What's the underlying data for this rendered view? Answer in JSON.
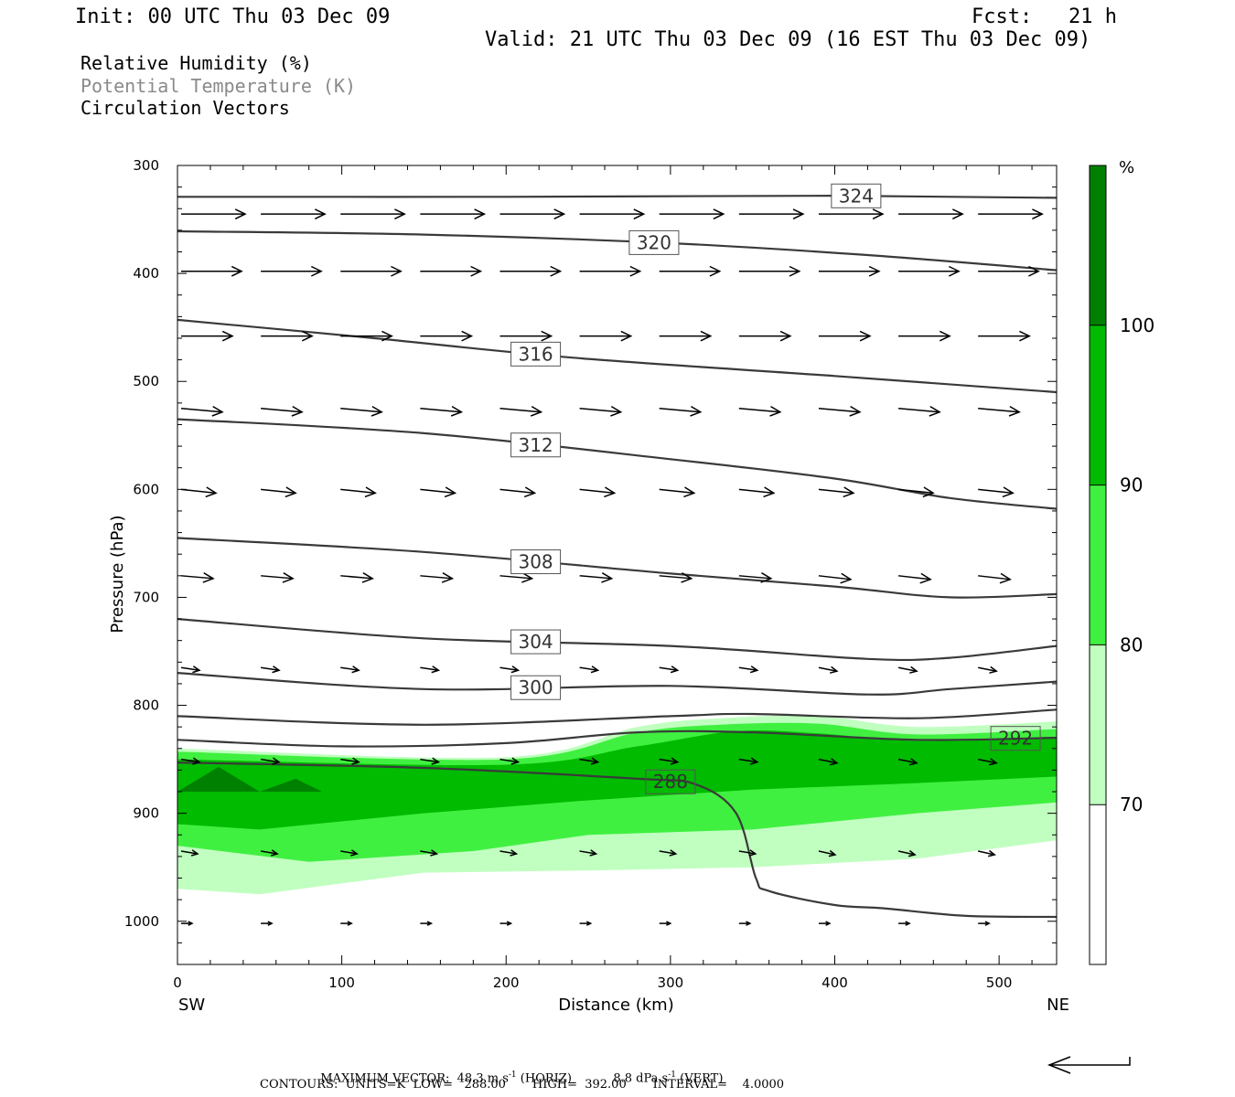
{
  "header": {
    "init": "Init: 00 UTC Thu 03 Dec 09",
    "fcst": "Fcst:   21 h",
    "valid": "Valid: 21 UTC Thu 03 Dec 09 (16 EST Thu 03 Dec 09)"
  },
  "fields": {
    "line1": "Relative Humidity (%)",
    "line2": "Potential Temperature (K)",
    "line3": "Circulation Vectors"
  },
  "footer": {
    "max_vector_label": "MAXIMUM VECTOR:",
    "max_vector_horiz": "48.3 m s",
    "horiz_sup": "-1",
    "horiz_tag": "(HORIZ)",
    "max_vector_vert": "8.8 dPa s",
    "vert_sup": "-1",
    "vert_tag": "(VERT)",
    "contours": "CONTOURS:  UNITS=K  LOW=   288.00       HIGH=  392.00       INTERVAL=    4.0000"
  },
  "colors": {
    "rh_70_80": "#c0ffc0",
    "rh_80_90": "#40f040",
    "rh_90_100": "#00bb00",
    "rh_100": "#008000",
    "contour": "#3a3a3a",
    "gray_text": "#8a8a8a"
  },
  "chart_data": {
    "type": "cross-section",
    "xlabel": "Distance (km)",
    "ylabel": "Pressure (hPa)",
    "xlim": [
      0,
      535
    ],
    "ylim": [
      1040,
      300
    ],
    "x_ticks": [
      "0",
      "100",
      "200",
      "300",
      "400",
      "500"
    ],
    "y_ticks": [
      "300",
      "400",
      "500",
      "600",
      "700",
      "800",
      "900",
      "1000"
    ],
    "x_end_labels": {
      "left": "SW",
      "right": "NE"
    },
    "colorbar": {
      "unit": "%",
      "levels": [
        "70",
        "80",
        "90",
        "100"
      ]
    },
    "theta_contours": [
      {
        "value": 324,
        "label": "324",
        "label_x": 413,
        "points": [
          [
            0,
            329
          ],
          [
            200,
            329
          ],
          [
            400,
            328
          ],
          [
            535,
            330
          ]
        ]
      },
      {
        "value": 320,
        "label": "320",
        "label_x": 290,
        "points": [
          [
            0,
            361
          ],
          [
            150,
            364
          ],
          [
            300,
            372
          ],
          [
            420,
            383
          ],
          [
            535,
            397
          ]
        ]
      },
      {
        "value": 316,
        "label": "316",
        "label_x": 218,
        "points": [
          [
            0,
            443
          ],
          [
            120,
            460
          ],
          [
            240,
            478
          ],
          [
            400,
            495
          ],
          [
            535,
            510
          ]
        ]
      },
      {
        "value": 312,
        "label": "312",
        "label_x": 218,
        "points": [
          [
            0,
            535
          ],
          [
            150,
            548
          ],
          [
            300,
            572
          ],
          [
            400,
            590
          ],
          [
            470,
            608
          ],
          [
            535,
            618
          ]
        ]
      },
      {
        "value": 308,
        "label": "308",
        "label_x": 218,
        "points": [
          [
            0,
            645
          ],
          [
            150,
            658
          ],
          [
            300,
            678
          ],
          [
            400,
            690
          ],
          [
            470,
            700
          ],
          [
            535,
            697
          ]
        ]
      },
      {
        "value": 304,
        "label": "304",
        "label_x": 218,
        "points": [
          [
            0,
            720
          ],
          [
            150,
            738
          ],
          [
            300,
            745
          ],
          [
            420,
            757
          ],
          [
            470,
            756
          ],
          [
            535,
            745
          ]
        ]
      },
      {
        "value": 300,
        "label": "300",
        "label_x": 218,
        "points": [
          [
            0,
            770
          ],
          [
            150,
            785
          ],
          [
            300,
            782
          ],
          [
            420,
            790
          ],
          [
            470,
            785
          ],
          [
            535,
            778
          ]
        ]
      },
      {
        "value": 296,
        "label": "",
        "label_x": 0,
        "points": [
          [
            0,
            810
          ],
          [
            150,
            818
          ],
          [
            300,
            810
          ],
          [
            350,
            808
          ],
          [
            450,
            812
          ],
          [
            535,
            804
          ]
        ]
      },
      {
        "value": 292,
        "label": "292",
        "label_x": 510,
        "points": [
          [
            0,
            832
          ],
          [
            100,
            838
          ],
          [
            200,
            835
          ],
          [
            280,
            825
          ],
          [
            350,
            825
          ],
          [
            450,
            832
          ],
          [
            535,
            830
          ]
        ]
      },
      {
        "value": 288,
        "label": "288",
        "label_x": 300,
        "points": [
          [
            0,
            853
          ],
          [
            150,
            858
          ],
          [
            280,
            868
          ],
          [
            315,
            873
          ],
          [
            340,
            900
          ],
          [
            352,
            960
          ],
          [
            360,
            972
          ],
          [
            400,
            985
          ],
          [
            430,
            988
          ],
          [
            480,
            995
          ],
          [
            535,
            996
          ]
        ]
      }
    ],
    "rh_layers": [
      {
        "range": "70-80",
        "top": [
          [
            0,
            840
          ],
          [
            200,
            848
          ],
          [
            280,
            820
          ],
          [
            330,
            812
          ],
          [
            390,
            810
          ],
          [
            450,
            820
          ],
          [
            535,
            815
          ]
        ],
        "bottom": [
          [
            0,
            970
          ],
          [
            50,
            975
          ],
          [
            150,
            955
          ],
          [
            250,
            953
          ],
          [
            350,
            950
          ],
          [
            450,
            942
          ],
          [
            535,
            925
          ]
        ]
      },
      {
        "range": "80-90",
        "top": [
          [
            0,
            843
          ],
          [
            200,
            850
          ],
          [
            280,
            825
          ],
          [
            330,
            818
          ],
          [
            390,
            817
          ],
          [
            450,
            827
          ],
          [
            535,
            822
          ]
        ],
        "bottom": [
          [
            0,
            930
          ],
          [
            80,
            945
          ],
          [
            180,
            935
          ],
          [
            250,
            920
          ],
          [
            350,
            915
          ],
          [
            450,
            900
          ],
          [
            535,
            890
          ]
        ]
      },
      {
        "range": "90-100",
        "top": [
          [
            0,
            850
          ],
          [
            200,
            855
          ],
          [
            280,
            838
          ],
          [
            340,
            824
          ],
          [
            390,
            826
          ],
          [
            450,
            833
          ],
          [
            535,
            830
          ]
        ],
        "bottom": [
          [
            0,
            910
          ],
          [
            50,
            915
          ],
          [
            150,
            900
          ],
          [
            250,
            888
          ],
          [
            350,
            878
          ],
          [
            450,
            872
          ],
          [
            535,
            866
          ]
        ]
      },
      {
        "range": "100",
        "peaks": [
          [
            0,
            880
          ],
          [
            25,
            857
          ],
          [
            50,
            880
          ],
          [
            72,
            868
          ],
          [
            88,
            880
          ]
        ]
      }
    ],
    "vectors": {
      "x_positions": [
        0,
        48.5,
        97,
        145.5,
        194,
        242.5,
        291,
        339.5,
        388,
        436.5,
        485
      ],
      "pressure_levels": [
        345,
        398,
        458,
        525,
        600,
        680,
        765,
        850,
        935,
        1002
      ]
    }
  }
}
